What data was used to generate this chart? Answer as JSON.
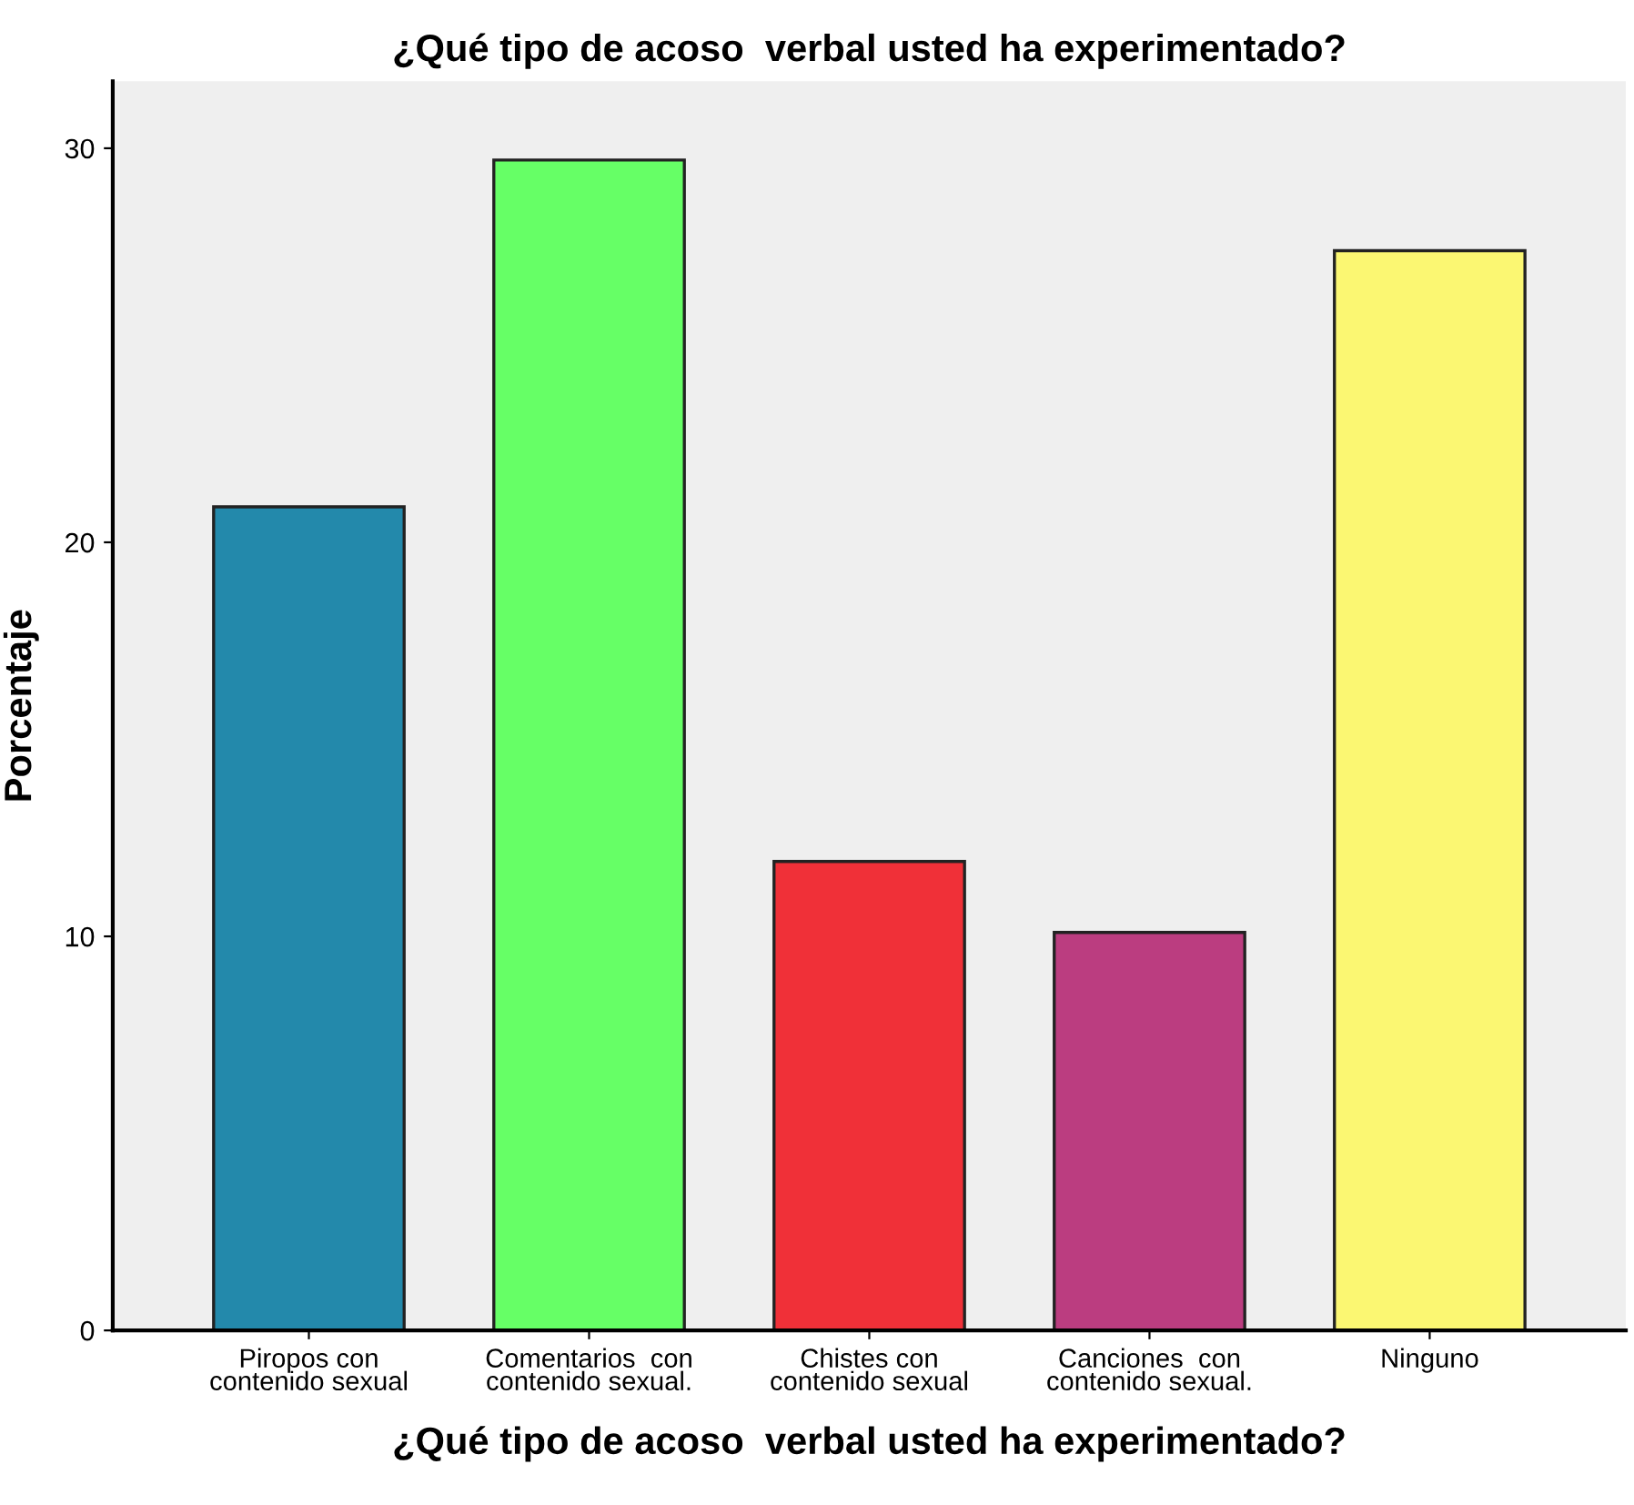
{
  "chart_data": {
    "type": "bar",
    "title": "¿Qué tipo de acoso  verbal usted ha experimentado?",
    "xlabel": "¿Qué tipo de acoso  verbal usted ha experimentado?",
    "ylabel": "Porcentaje",
    "categories": [
      "Piropos con\ncontenido sexual",
      "Comentarios  con\ncontenido sexual.",
      "Chistes con\ncontenido sexual",
      "Canciones  con\ncontenido sexual.",
      "Ninguno"
    ],
    "values": [
      20.9,
      29.7,
      11.9,
      10.1,
      27.4
    ],
    "colors": [
      "#2389ab",
      "#66ff66",
      "#f03038",
      "#bb3d80",
      "#fbf772"
    ],
    "ylim": [
      0,
      31.7
    ],
    "yticks": [
      0,
      10,
      20,
      30
    ],
    "grid": false
  }
}
